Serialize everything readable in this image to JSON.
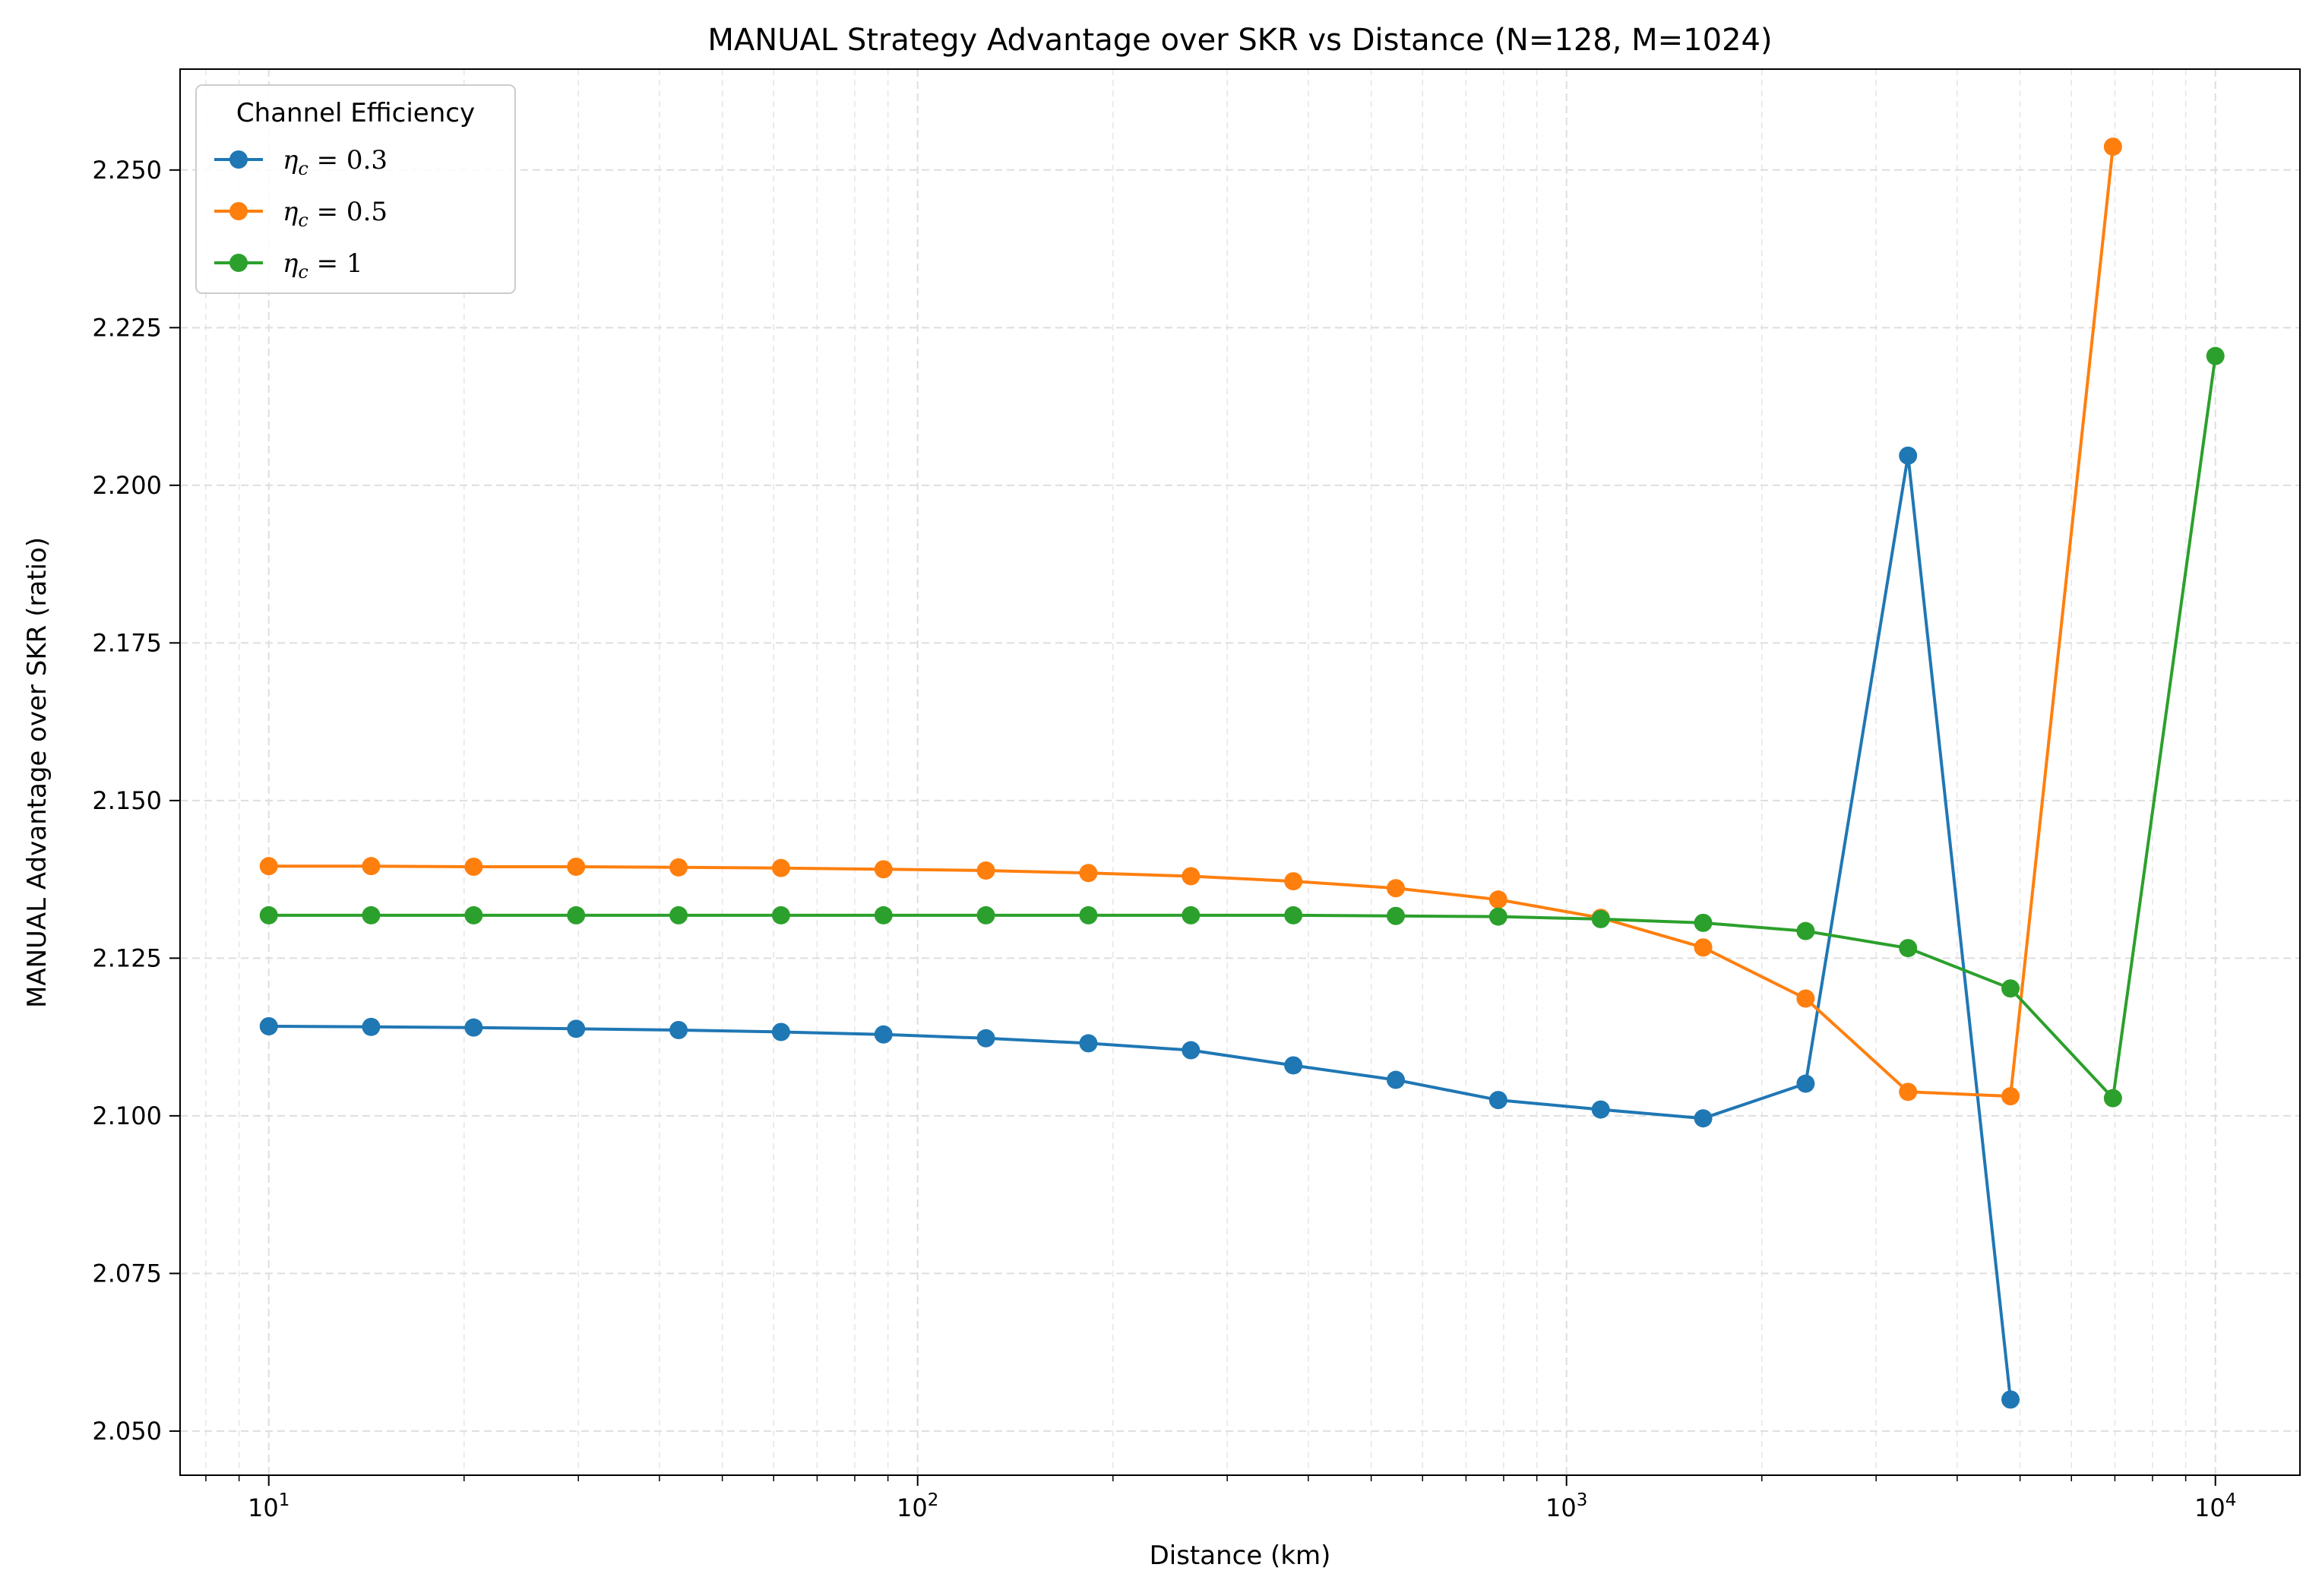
{
  "chart_data": {
    "type": "line",
    "title": "MANUAL Strategy Advantage over SKR vs Distance (N=128, M=1024)",
    "xlabel": "Distance (km)",
    "ylabel": "MANUAL Advantage over SKR (ratio)",
    "xscale": "log",
    "xlim": [
      7.3,
      13500
    ],
    "ylim": [
      2.043,
      2.266
    ],
    "grid": true,
    "legend": {
      "title": "Channel Efficiency",
      "placement": "top-left"
    },
    "x_ticks": [
      {
        "value": 10,
        "base": "10",
        "exp": "1"
      },
      {
        "value": 100,
        "base": "10",
        "exp": "2"
      },
      {
        "value": 1000,
        "base": "10",
        "exp": "3"
      },
      {
        "value": 10000,
        "base": "10",
        "exp": "4"
      }
    ],
    "y_ticks": [
      2.05,
      2.075,
      2.1,
      2.125,
      2.15,
      2.175,
      2.2,
      2.225,
      2.25
    ],
    "y_tick_labels": [
      "2.050",
      "2.075",
      "2.100",
      "2.125",
      "2.150",
      "2.175",
      "2.200",
      "2.225",
      "2.250"
    ],
    "series": [
      {
        "name": "η_c = 0.3",
        "symbol": "η",
        "subscript": "c",
        "value_text": " = 0.3",
        "color": "#1f77b4",
        "x": [
          10,
          14.38,
          20.69,
          29.76,
          42.81,
          61.58,
          88.59,
          127.4,
          183.3,
          263.7,
          379.3,
          545.6,
          784.8,
          1129,
          1624,
          2336,
          3360,
          4833
        ],
        "y": [
          2.1142,
          2.1141,
          2.114,
          2.1138,
          2.1136,
          2.1133,
          2.1129,
          2.1123,
          2.1115,
          2.1104,
          2.108,
          2.1057,
          2.1025,
          2.101,
          2.0996,
          2.1051,
          2.2047,
          2.055
        ]
      },
      {
        "name": "η_c = 0.5",
        "symbol": "η",
        "subscript": "c",
        "value_text": " = 0.5",
        "color": "#ff7f0e",
        "x": [
          10,
          14.38,
          20.69,
          29.76,
          42.81,
          61.58,
          88.59,
          127.4,
          183.3,
          263.7,
          379.3,
          545.6,
          784.8,
          1129,
          1624,
          2336,
          3360,
          4833,
          6952
        ],
        "y": [
          2.1396,
          2.1396,
          2.1395,
          2.1395,
          2.1394,
          2.1393,
          2.1391,
          2.1389,
          2.1385,
          2.138,
          2.1372,
          2.1361,
          2.1343,
          2.1314,
          2.1267,
          2.1186,
          2.1038,
          2.1031,
          2.2537
        ]
      },
      {
        "name": "η_c = 1",
        "symbol": "η",
        "subscript": "c",
        "value_text": " = 1",
        "color": "#2ca02c",
        "x": [
          10,
          14.38,
          20.69,
          29.76,
          42.81,
          61.58,
          88.59,
          127.4,
          183.3,
          263.7,
          379.3,
          545.6,
          784.8,
          1129,
          1624,
          2336,
          3360,
          4833,
          6952,
          10000
        ],
        "y": [
          2.1318,
          2.1318,
          2.1318,
          2.1318,
          2.1318,
          2.1318,
          2.1318,
          2.1318,
          2.1318,
          2.1318,
          2.1318,
          2.1317,
          2.1316,
          2.1312,
          2.1306,
          2.1293,
          2.1266,
          2.1202,
          2.1028,
          2.2205
        ]
      }
    ]
  }
}
